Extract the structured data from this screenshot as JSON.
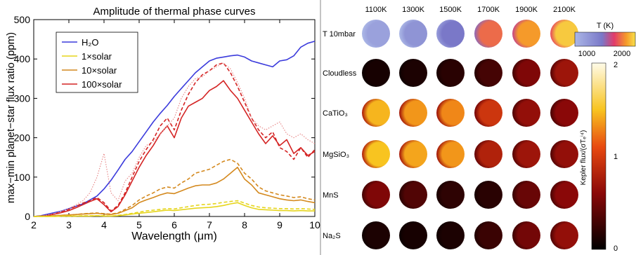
{
  "chart_data": [
    {
      "type": "line",
      "title": "Amplitude of thermal phase curves",
      "xlabel": "Wavelength (μm)",
      "ylabel": "max−min planet−star flux ratio (ppm)",
      "xlim": [
        2,
        10
      ],
      "ylim": [
        0,
        500
      ],
      "x_ticks": [
        "2",
        "3",
        "4",
        "5",
        "6",
        "7",
        "8",
        "9",
        "10"
      ],
      "y_ticks": [
        "0",
        "100",
        "200",
        "300",
        "400",
        "500"
      ],
      "legend_position": "top-left",
      "legend": [
        {
          "label": "H₂O",
          "color": "#3b3bdc",
          "style": "solid"
        },
        {
          "label": "1×solar",
          "color": "#e6d51c",
          "style": "solid"
        },
        {
          "label": "10×solar",
          "color": "#d4891e",
          "style": "solid"
        },
        {
          "label": "100×solar",
          "color": "#d42424",
          "style": "solid"
        }
      ],
      "x": [
        2,
        2.2,
        2.4,
        2.6,
        2.8,
        3,
        3.2,
        3.4,
        3.6,
        3.8,
        4,
        4.2,
        4.4,
        4.6,
        4.8,
        5,
        5.2,
        5.4,
        5.6,
        5.8,
        6,
        6.2,
        6.4,
        6.6,
        6.8,
        7,
        7.2,
        7.4,
        7.6,
        7.8,
        8,
        8.2,
        8.4,
        8.6,
        8.8,
        9,
        9.2,
        9.4,
        9.6,
        9.8,
        10
      ],
      "series": [
        {
          "name": "H₂O",
          "color": "#3b3bdc",
          "dash": "solid",
          "values": [
            0,
            2,
            6,
            10,
            14,
            20,
            26,
            32,
            42,
            52,
            70,
            92,
            118,
            145,
            165,
            190,
            215,
            240,
            262,
            282,
            305,
            325,
            345,
            365,
            380,
            395,
            402,
            405,
            408,
            410,
            405,
            395,
            390,
            385,
            380,
            395,
            398,
            408,
            430,
            440,
            445
          ]
        },
        {
          "name": "100×solar",
          "color": "#d42424",
          "dash": "solid",
          "values": [
            0,
            1,
            3,
            6,
            10,
            15,
            22,
            30,
            38,
            45,
            30,
            12,
            25,
            55,
            90,
            125,
            155,
            180,
            210,
            230,
            200,
            250,
            280,
            290,
            300,
            320,
            330,
            345,
            320,
            300,
            270,
            240,
            210,
            185,
            205,
            180,
            195,
            160,
            175,
            155,
            165
          ]
        },
        {
          "name": "100×solar",
          "color": "#d42424",
          "dash": "dashed",
          "values": [
            0,
            1,
            3,
            7,
            12,
            18,
            26,
            34,
            40,
            48,
            35,
            14,
            28,
            60,
            100,
            140,
            170,
            195,
            230,
            250,
            220,
            270,
            310,
            340,
            360,
            370,
            385,
            390,
            365,
            330,
            290,
            250,
            220,
            200,
            215,
            175,
            165,
            145,
            175,
            150,
            170
          ]
        },
        {
          "name": "100×solar",
          "color": "#e88c8c",
          "dash": "dotted",
          "values": [
            0,
            1,
            4,
            8,
            14,
            20,
            30,
            40,
            60,
            100,
            160,
            60,
            40,
            90,
            110,
            150,
            180,
            190,
            210,
            230,
            250,
            300,
            330,
            350,
            355,
            370,
            380,
            390,
            375,
            340,
            300,
            250,
            230,
            220,
            230,
            240,
            210,
            200,
            210,
            195,
            185
          ]
        },
        {
          "name": "10×solar",
          "color": "#d4891e",
          "dash": "solid",
          "values": [
            0,
            1,
            1,
            2,
            3,
            4,
            5,
            6,
            7,
            8,
            6,
            5,
            8,
            15,
            22,
            35,
            42,
            48,
            55,
            60,
            58,
            65,
            72,
            78,
            80,
            80,
            85,
            95,
            110,
            125,
            95,
            80,
            60,
            55,
            50,
            45,
            42,
            40,
            42,
            38,
            35
          ]
        },
        {
          "name": "10×solar",
          "color": "#d4891e",
          "dash": "dashed",
          "values": [
            0,
            1,
            1,
            2,
            3,
            4,
            5,
            7,
            8,
            9,
            7,
            6,
            9,
            18,
            28,
            42,
            52,
            60,
            70,
            75,
            72,
            85,
            95,
            110,
            115,
            120,
            130,
            140,
            145,
            135,
            110,
            95,
            75,
            65,
            60,
            55,
            52,
            48,
            50,
            45,
            42
          ]
        },
        {
          "name": "1×solar",
          "color": "#e6d51c",
          "dash": "solid",
          "values": [
            0,
            0,
            0,
            0,
            1,
            1,
            1,
            1,
            1,
            2,
            1,
            1,
            2,
            4,
            6,
            8,
            10,
            12,
            14,
            16,
            15,
            17,
            19,
            21,
            22,
            23,
            25,
            28,
            32,
            35,
            28,
            22,
            18,
            17,
            16,
            15,
            15,
            14,
            15,
            14,
            14
          ]
        },
        {
          "name": "1×solar",
          "color": "#e6d51c",
          "dash": "dashed",
          "values": [
            0,
            0,
            0,
            1,
            1,
            1,
            1,
            2,
            2,
            2,
            2,
            1,
            3,
            5,
            8,
            11,
            14,
            16,
            18,
            20,
            19,
            22,
            25,
            28,
            30,
            31,
            33,
            36,
            38,
            40,
            34,
            28,
            24,
            22,
            21,
            20,
            20,
            19,
            20,
            19,
            18
          ]
        }
      ]
    },
    {
      "type": "heatmap",
      "columns": [
        "1100K",
        "1300K",
        "1500K",
        "1700K",
        "1900K",
        "2100K"
      ],
      "rows": [
        {
          "label": "T 10mbar",
          "colorbar": "temperature"
        },
        {
          "label": "Cloudless",
          "colorbar": "flux"
        },
        {
          "label": "CaTiO₃",
          "colorbar": "flux"
        },
        {
          "label": "MgSiO₃",
          "colorbar": "flux"
        },
        {
          "label": "MnS",
          "colorbar": "flux"
        },
        {
          "label": "Na₂S",
          "colorbar": "flux"
        }
      ],
      "disk_brightness": [
        [
          0.15,
          0.25,
          0.45,
          0.75,
          0.85,
          0.95
        ],
        [
          0.1,
          0.12,
          0.18,
          0.3,
          0.55,
          0.7
        ],
        [
          1.45,
          1.35,
          1.3,
          0.95,
          0.65,
          0.6
        ],
        [
          1.5,
          1.4,
          1.35,
          0.8,
          0.7,
          0.65
        ],
        [
          0.55,
          0.35,
          0.2,
          0.18,
          0.45,
          0.6
        ],
        [
          0.12,
          0.1,
          0.12,
          0.25,
          0.5,
          0.65
        ]
      ],
      "temperature_colorbar": {
        "label": "T (K)",
        "ticks": [
          "1000",
          "2000"
        ]
      },
      "flux_colorbar": {
        "label": "Kepler flux/(σTₑⁱ⁴)",
        "ticks": [
          "2",
          "1",
          "0"
        ],
        "range": [
          0,
          2
        ]
      }
    }
  ]
}
